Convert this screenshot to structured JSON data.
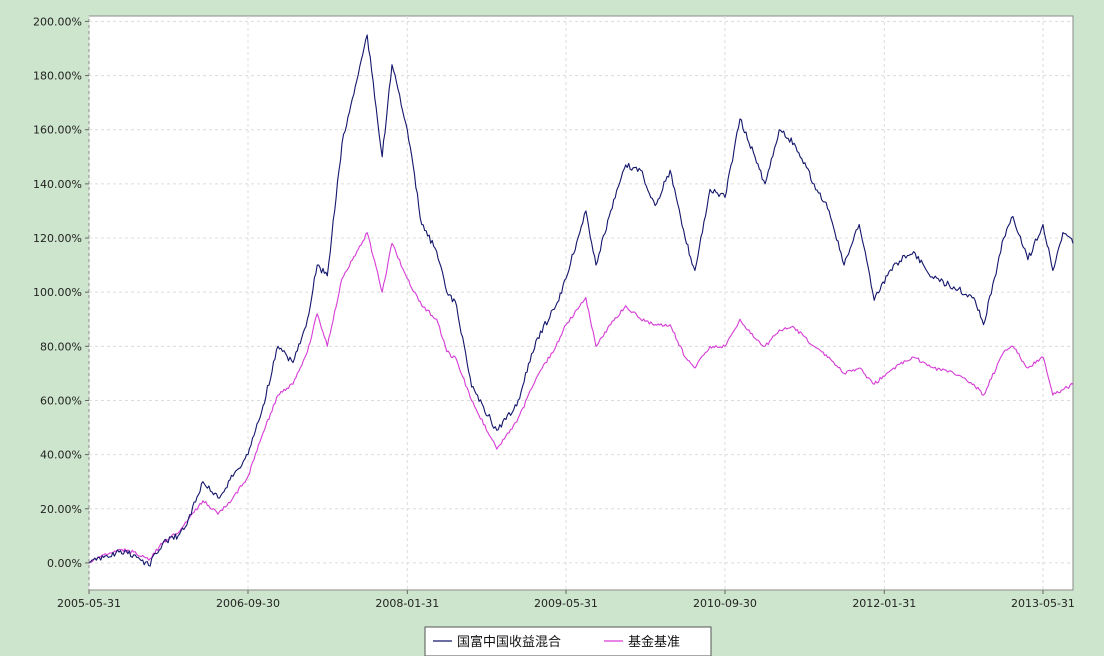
{
  "chart_data": {
    "type": "line",
    "title": "",
    "xlabel": "",
    "ylabel": "",
    "x_range": [
      "2005-05-31",
      "2013-08-31"
    ],
    "ylim": [
      -0.1,
      2.02
    ],
    "y_tick_values": [
      0,
      0.2,
      0.4,
      0.6,
      0.8,
      1.0,
      1.2,
      1.4,
      1.6,
      1.8,
      2.0
    ],
    "y_tick_labels": [
      "0.00%",
      "20.00%",
      "40.00%",
      "60.00%",
      "80.00%",
      "100.00%",
      "120.00%",
      "140.00%",
      "160.00%",
      "180.00%",
      "200.00%"
    ],
    "x_tick_labels": [
      "2005-05-31",
      "2006-09-30",
      "2008-01-31",
      "2009-05-31",
      "2010-09-30",
      "2012-01-31",
      "2013-05-31"
    ],
    "grid": true,
    "legend_position": "bottom-center",
    "series": [
      {
        "name": "国富中国收益混合",
        "color": "#14166b",
        "points": [
          [
            "2005-05-31",
            0.0
          ],
          [
            "2005-07-15",
            0.02
          ],
          [
            "2005-08-31",
            0.04
          ],
          [
            "2005-10-15",
            0.03
          ],
          [
            "2005-11-30",
            -0.01
          ],
          [
            "2006-01-15",
            0.08
          ],
          [
            "2006-02-28",
            0.1
          ],
          [
            "2006-03-31",
            0.16
          ],
          [
            "2006-05-15",
            0.3
          ],
          [
            "2006-06-30",
            0.24
          ],
          [
            "2006-08-15",
            0.32
          ],
          [
            "2006-09-30",
            0.4
          ],
          [
            "2006-11-15",
            0.58
          ],
          [
            "2006-12-31",
            0.8
          ],
          [
            "2007-02-15",
            0.74
          ],
          [
            "2007-03-31",
            0.9
          ],
          [
            "2007-04-30",
            1.1
          ],
          [
            "2007-05-31",
            1.06
          ],
          [
            "2007-07-15",
            1.55
          ],
          [
            "2007-09-30",
            1.95
          ],
          [
            "2007-11-15",
            1.5
          ],
          [
            "2007-12-15",
            1.84
          ],
          [
            "2008-01-31",
            1.6
          ],
          [
            "2008-03-15",
            1.25
          ],
          [
            "2008-04-30",
            1.15
          ],
          [
            "2008-05-31",
            1.0
          ],
          [
            "2008-06-30",
            0.95
          ],
          [
            "2008-08-15",
            0.65
          ],
          [
            "2008-10-31",
            0.49
          ],
          [
            "2008-12-31",
            0.58
          ],
          [
            "2009-02-28",
            0.82
          ],
          [
            "2009-04-30",
            0.95
          ],
          [
            "2009-05-31",
            1.05
          ],
          [
            "2009-07-31",
            1.3
          ],
          [
            "2009-08-31",
            1.1
          ],
          [
            "2009-10-15",
            1.3
          ],
          [
            "2009-11-30",
            1.47
          ],
          [
            "2010-01-15",
            1.45
          ],
          [
            "2010-02-28",
            1.32
          ],
          [
            "2010-04-15",
            1.45
          ],
          [
            "2010-05-31",
            1.2
          ],
          [
            "2010-06-30",
            1.08
          ],
          [
            "2010-08-15",
            1.38
          ],
          [
            "2010-09-30",
            1.35
          ],
          [
            "2010-11-15",
            1.64
          ],
          [
            "2010-12-31",
            1.5
          ],
          [
            "2011-01-31",
            1.4
          ],
          [
            "2011-03-15",
            1.6
          ],
          [
            "2011-04-30",
            1.55
          ],
          [
            "2011-06-30",
            1.4
          ],
          [
            "2011-08-15",
            1.3
          ],
          [
            "2011-09-30",
            1.1
          ],
          [
            "2011-11-15",
            1.25
          ],
          [
            "2011-12-31",
            0.97
          ],
          [
            "2012-02-28",
            1.1
          ],
          [
            "2012-04-30",
            1.15
          ],
          [
            "2012-06-30",
            1.05
          ],
          [
            "2012-08-31",
            1.02
          ],
          [
            "2012-10-31",
            0.98
          ],
          [
            "2012-11-30",
            0.88
          ],
          [
            "2013-01-31",
            1.2
          ],
          [
            "2013-02-28",
            1.28
          ],
          [
            "2013-04-15",
            1.12
          ],
          [
            "2013-05-31",
            1.25
          ],
          [
            "2013-06-30",
            1.08
          ],
          [
            "2013-07-31",
            1.22
          ],
          [
            "2013-08-31",
            1.18
          ]
        ]
      },
      {
        "name": "基金基准",
        "color": "#d63cd6",
        "points": [
          [
            "2005-05-31",
            0.0
          ],
          [
            "2005-07-15",
            0.03
          ],
          [
            "2005-08-31",
            0.05
          ],
          [
            "2005-10-15",
            0.04
          ],
          [
            "2005-11-30",
            0.01
          ],
          [
            "2006-01-15",
            0.08
          ],
          [
            "2006-02-28",
            0.11
          ],
          [
            "2006-03-31",
            0.16
          ],
          [
            "2006-05-15",
            0.23
          ],
          [
            "2006-06-30",
            0.18
          ],
          [
            "2006-08-15",
            0.24
          ],
          [
            "2006-09-30",
            0.32
          ],
          [
            "2006-11-15",
            0.48
          ],
          [
            "2006-12-31",
            0.62
          ],
          [
            "2007-02-15",
            0.66
          ],
          [
            "2007-03-31",
            0.78
          ],
          [
            "2007-04-30",
            0.92
          ],
          [
            "2007-05-31",
            0.8
          ],
          [
            "2007-07-15",
            1.05
          ],
          [
            "2007-09-30",
            1.22
          ],
          [
            "2007-11-15",
            1.0
          ],
          [
            "2007-12-15",
            1.18
          ],
          [
            "2008-01-31",
            1.05
          ],
          [
            "2008-03-15",
            0.95
          ],
          [
            "2008-04-30",
            0.9
          ],
          [
            "2008-05-31",
            0.78
          ],
          [
            "2008-06-30",
            0.75
          ],
          [
            "2008-08-15",
            0.6
          ],
          [
            "2008-10-31",
            0.42
          ],
          [
            "2008-12-31",
            0.52
          ],
          [
            "2009-02-28",
            0.68
          ],
          [
            "2009-04-30",
            0.8
          ],
          [
            "2009-05-31",
            0.88
          ],
          [
            "2009-07-31",
            0.98
          ],
          [
            "2009-08-31",
            0.8
          ],
          [
            "2009-10-15",
            0.88
          ],
          [
            "2009-11-30",
            0.95
          ],
          [
            "2010-01-15",
            0.9
          ],
          [
            "2010-02-28",
            0.88
          ],
          [
            "2010-04-15",
            0.88
          ],
          [
            "2010-05-31",
            0.76
          ],
          [
            "2010-06-30",
            0.72
          ],
          [
            "2010-08-15",
            0.8
          ],
          [
            "2010-09-30",
            0.8
          ],
          [
            "2010-11-15",
            0.9
          ],
          [
            "2010-12-31",
            0.83
          ],
          [
            "2011-01-31",
            0.8
          ],
          [
            "2011-03-15",
            0.86
          ],
          [
            "2011-04-30",
            0.87
          ],
          [
            "2011-06-30",
            0.8
          ],
          [
            "2011-08-15",
            0.76
          ],
          [
            "2011-09-30",
            0.7
          ],
          [
            "2011-11-15",
            0.72
          ],
          [
            "2011-12-31",
            0.66
          ],
          [
            "2012-02-28",
            0.72
          ],
          [
            "2012-04-30",
            0.76
          ],
          [
            "2012-06-30",
            0.72
          ],
          [
            "2012-08-31",
            0.7
          ],
          [
            "2012-10-31",
            0.66
          ],
          [
            "2012-11-30",
            0.62
          ],
          [
            "2013-01-31",
            0.78
          ],
          [
            "2013-02-28",
            0.8
          ],
          [
            "2013-04-15",
            0.72
          ],
          [
            "2013-05-31",
            0.76
          ],
          [
            "2013-06-30",
            0.62
          ],
          [
            "2013-07-31",
            0.64
          ],
          [
            "2013-08-31",
            0.66
          ]
        ]
      }
    ]
  }
}
